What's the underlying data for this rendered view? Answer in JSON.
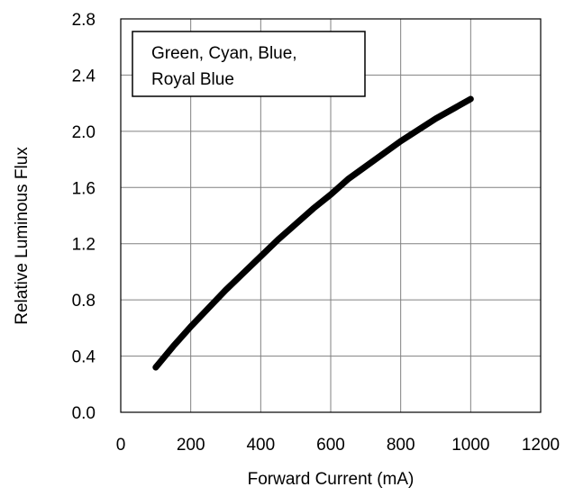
{
  "chart_data": {
    "type": "line",
    "xlabel": "Forward Current (mA)",
    "ylabel": "Relative Luminous Flux",
    "xlim": [
      0,
      1200
    ],
    "ylim": [
      0.0,
      2.8
    ],
    "x_ticks": [
      0,
      200,
      400,
      600,
      800,
      1000,
      1200
    ],
    "x_tick_labels": [
      "0",
      "200",
      "400",
      "600",
      "800",
      "1000",
      "1200"
    ],
    "y_ticks": [
      0.0,
      0.4,
      0.8,
      1.2,
      1.6,
      2.0,
      2.4,
      2.8
    ],
    "y_tick_labels": [
      "0.0",
      "0.4",
      "0.8",
      "1.2",
      "1.6",
      "2.0",
      "2.4",
      "2.8"
    ],
    "grid": true,
    "legend_placement": "top-left",
    "legend_lines": [
      "Green, Cyan, Blue,",
      "Royal Blue"
    ],
    "line_color": "#000000",
    "series": [
      {
        "x": [
          100,
          150,
          200,
          250,
          300,
          350,
          400,
          450,
          500,
          550,
          600,
          650,
          700,
          750,
          800,
          850,
          900,
          950,
          1000
        ],
        "y": [
          0.32,
          0.47,
          0.61,
          0.74,
          0.87,
          0.99,
          1.11,
          1.23,
          1.34,
          1.45,
          1.55,
          1.66,
          1.75,
          1.84,
          1.93,
          2.01,
          2.09,
          2.16,
          2.23
        ]
      }
    ]
  }
}
